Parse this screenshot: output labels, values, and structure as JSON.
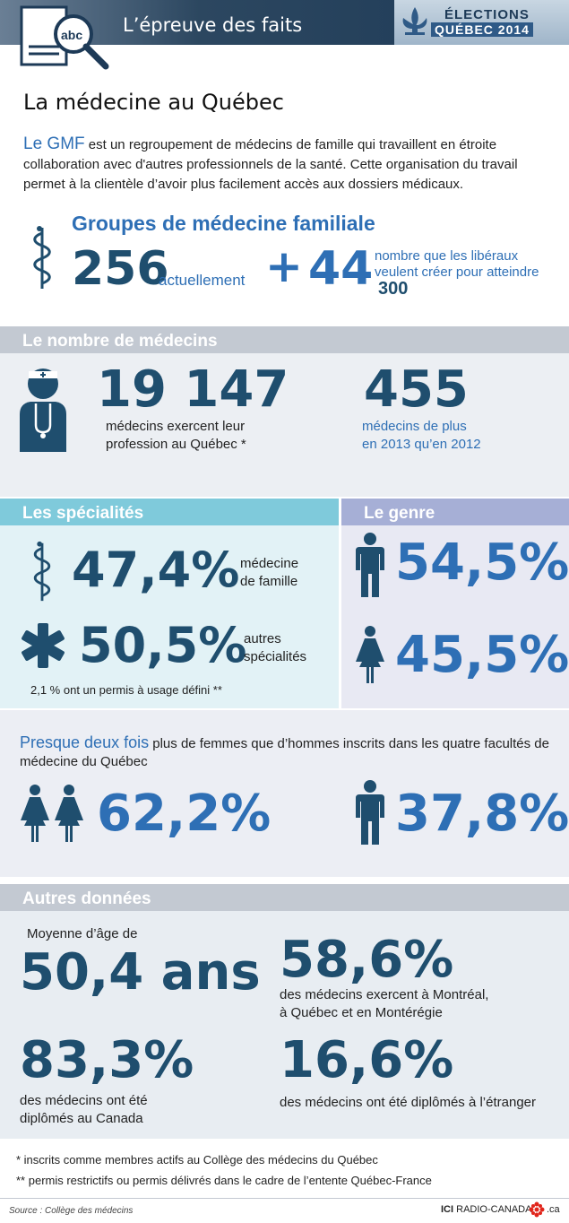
{
  "header": {
    "title": "L’épreuve des faits",
    "logo_text": "abc",
    "elections_line1": "ÉLECTIONS",
    "elections_line2": "QUÉBEC 2014"
  },
  "page_title": "La médecine au Québec",
  "intro": {
    "lead": "Le GMF",
    "text": " est un regroupement de médecins de famille qui travaillent en étroite collaboration avec d'autres professionnels de la santé. Cette organisation du travail permet à la clientèle d’avoir plus facilement accès aux dossiers médicaux."
  },
  "gmf": {
    "title": "Groupes de médecine familiale",
    "current_value": "256",
    "current_label": "actuellement",
    "plus": "+",
    "new_value": "44",
    "new_label": "nombre que les libéraux veulent créer pour atteindre",
    "target": "300"
  },
  "doctors": {
    "bar": "Le nombre de médecins",
    "total_value": "19 147",
    "total_label_1": "médecins exercent leur",
    "total_label_2": "profession au Québec *",
    "increase_value": "455",
    "increase_label_1": "médecins de plus",
    "increase_label_2": "en 2013 qu’en 2012"
  },
  "specialties": {
    "bar": "Les spécialités",
    "family_value": "47,4%",
    "family_label_1": "médecine",
    "family_label_2": "de famille",
    "other_value": "50,5%",
    "other_label_1": "autres",
    "other_label_2": "spécialités",
    "footnote": "2,1 % ont un permis à usage défini **"
  },
  "gender": {
    "bar": "Le genre",
    "men": "54,5%",
    "women": "45,5%"
  },
  "students": {
    "lead": "Presque deux fois",
    "text": " plus de femmes que d’hommes inscrits dans les quatre facultés de médecine du Québec",
    "women": "62,2%",
    "men": "37,8%"
  },
  "other": {
    "bar": "Autres données",
    "age_label": "Moyenne d’âge de",
    "age_value": "50,4 ans",
    "regions_value": "58,6%",
    "regions_label_1": "des médecins exercent à Montréal,",
    "regions_label_2": "à Québec et en Montérégie",
    "canada_value": "83,3%",
    "canada_label_1": "des médecins ont été",
    "canada_label_2": "diplômés au Canada",
    "abroad_value": "16,6%",
    "abroad_label": "des médecins ont été diplômés à l’étranger"
  },
  "footnotes": {
    "one": "* inscrits comme membres actifs au Collège des médecins du Québec",
    "two": "** permis restrictifs ou permis délivrés dans le cadre de l’entente Québec-France"
  },
  "source": {
    "label": "Source",
    "text": " : Collège des médecins",
    "brand_ici": "ICI",
    "brand_name": "RADIO-CANADA",
    "brand_tld": ".ca"
  },
  "colors": {
    "dark_blue": "#1f4e6e",
    "accent_blue": "#2e6fb5",
    "bar_gray": "#c3c9d2",
    "bar_cyan": "#7fcadb",
    "bar_lilac": "#a6afd6"
  },
  "icons": [
    "magnifier-document-icon",
    "caduceus-icon",
    "doctor-icon",
    "asterisk-icon",
    "man-icon",
    "woman-icon",
    "radio-canada-logo-icon"
  ]
}
